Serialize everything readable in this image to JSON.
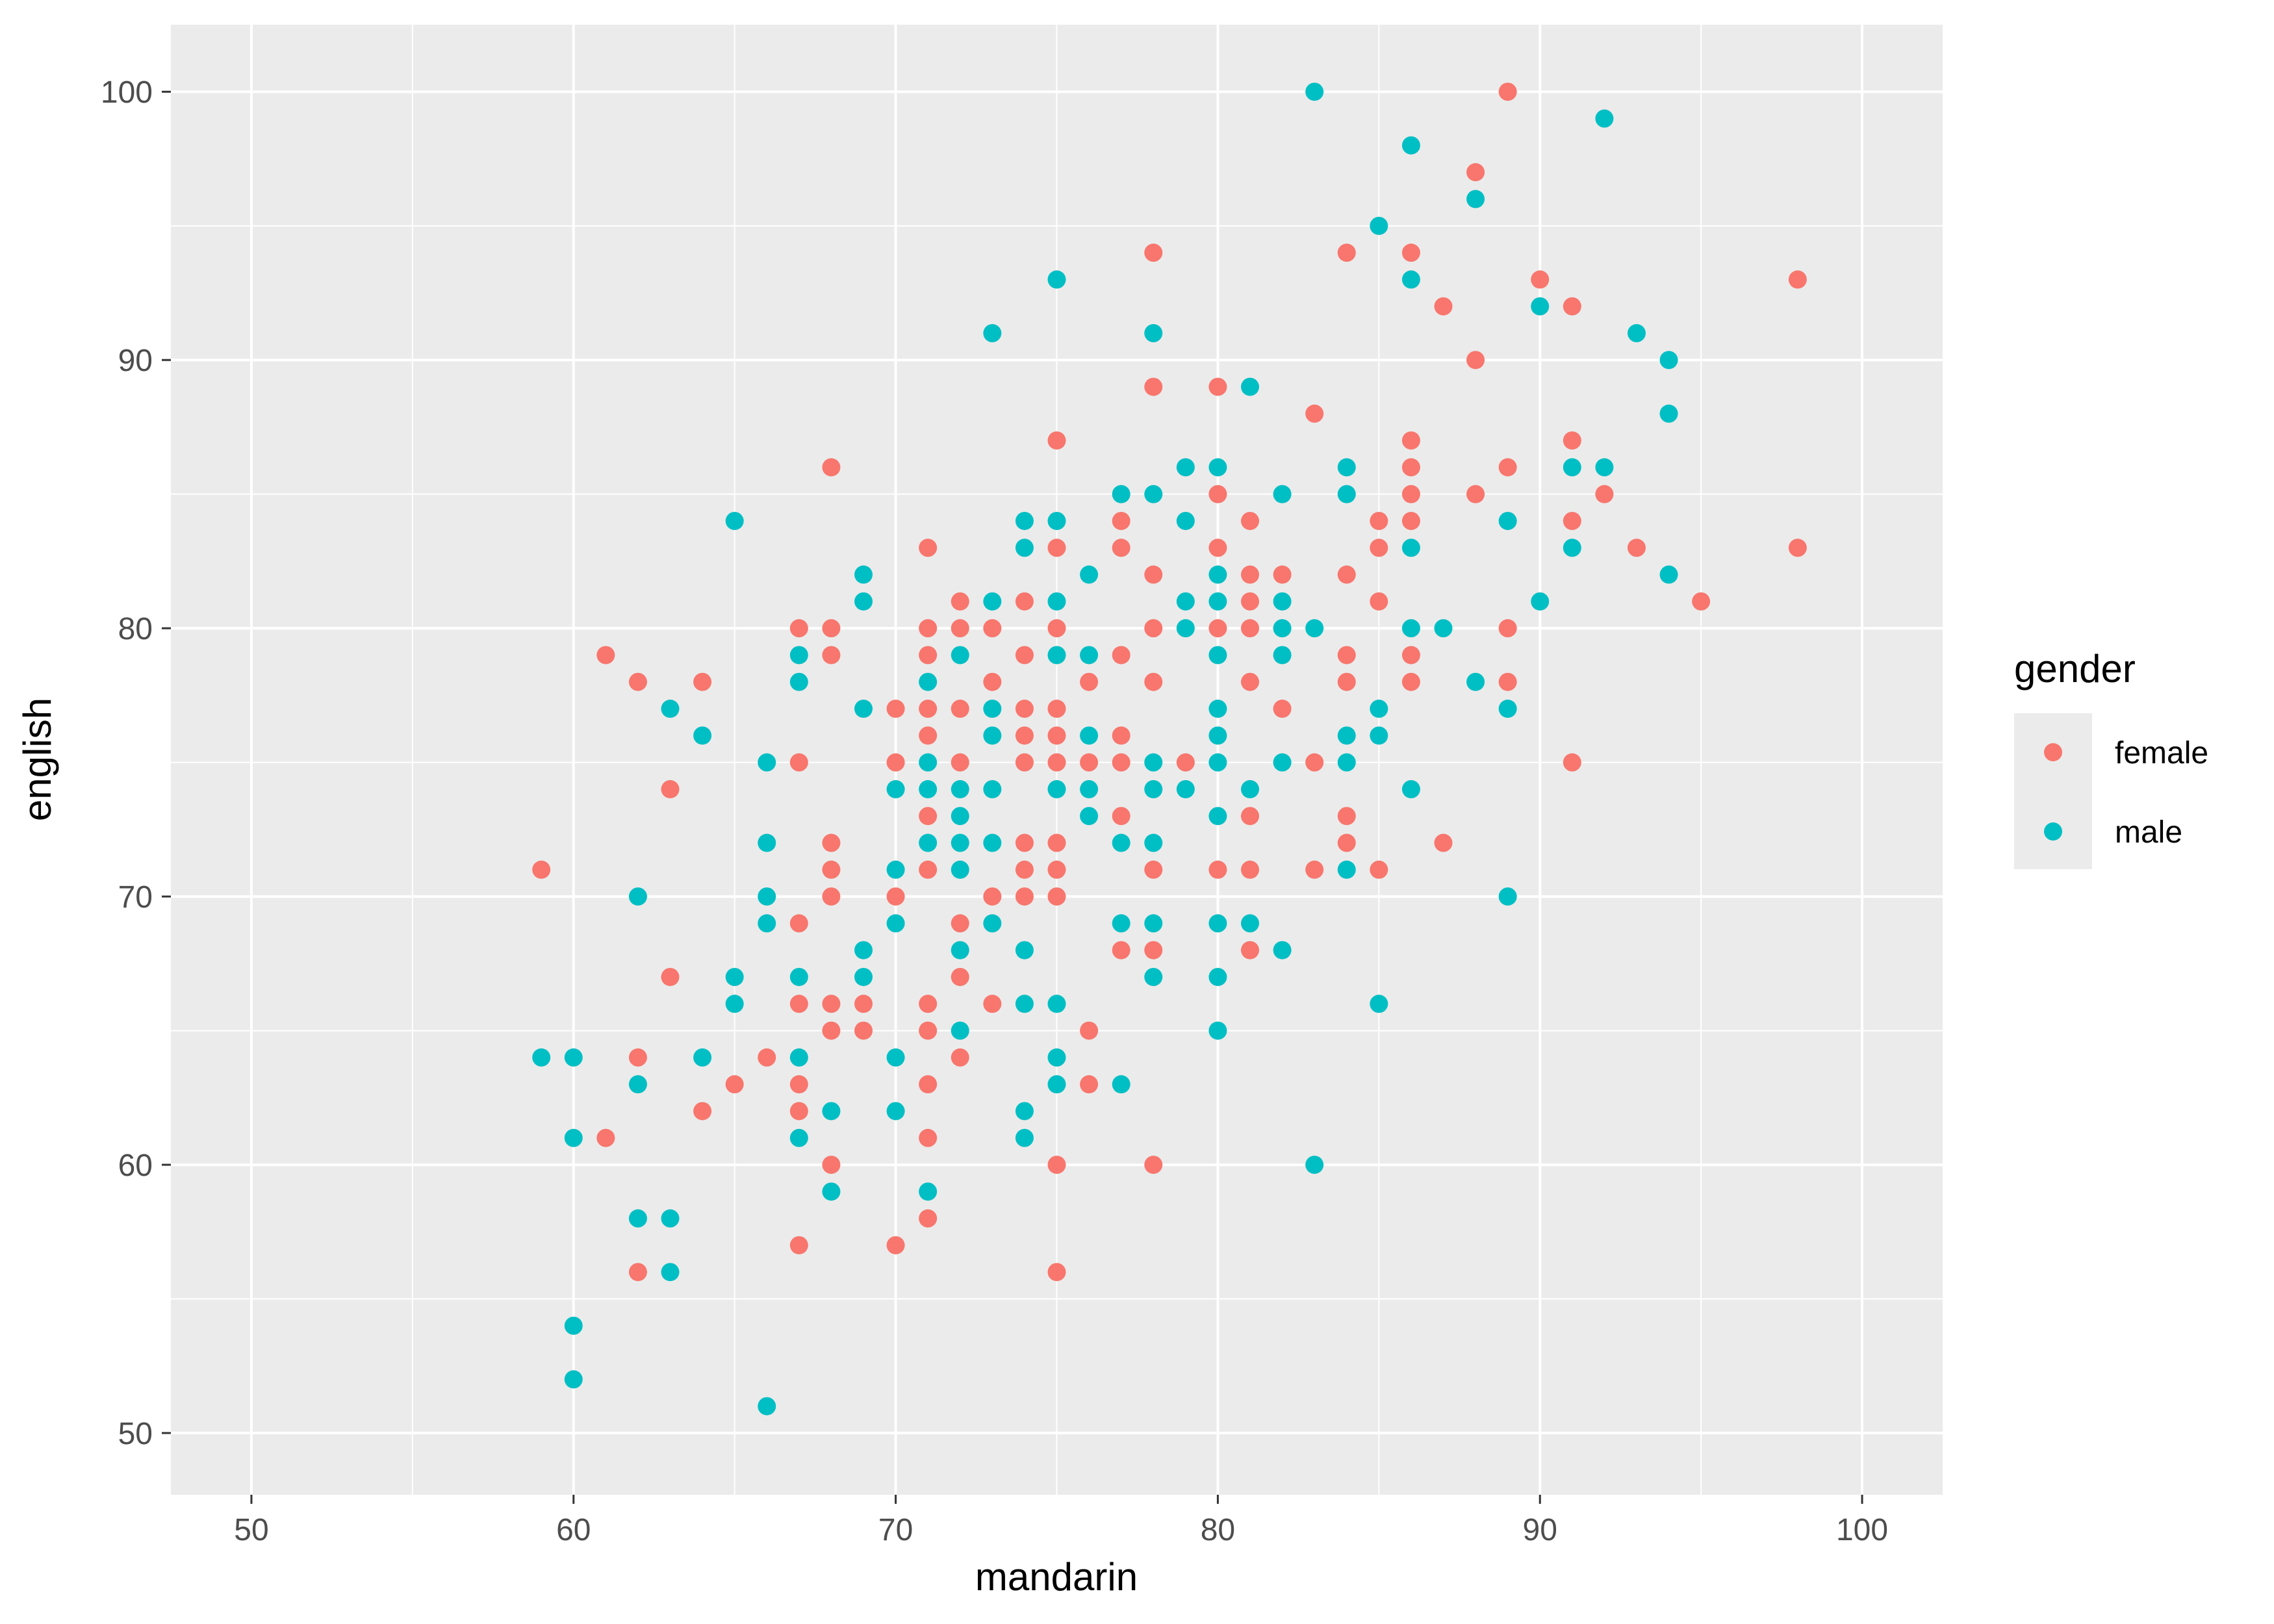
{
  "chart_data": {
    "type": "scatter",
    "xlabel": "mandarin",
    "ylabel": "english",
    "xlim": [
      47.5,
      102.5
    ],
    "ylim": [
      47.7,
      102.5
    ],
    "x_ticks": [
      50,
      60,
      70,
      80,
      90,
      100
    ],
    "y_ticks": [
      50,
      60,
      70,
      80,
      90,
      100
    ],
    "x_tick_labels": [
      "50",
      "60",
      "70",
      "80",
      "90",
      "100"
    ],
    "y_tick_labels": [
      "50",
      "60",
      "70",
      "80",
      "90",
      "100"
    ],
    "grid": true,
    "legend": {
      "title": "gender",
      "position": "right"
    },
    "series": [
      {
        "name": "female",
        "color": "#F8766D",
        "points": [
          [
            59,
            71
          ],
          [
            61,
            79
          ],
          [
            61,
            61
          ],
          [
            62,
            78
          ],
          [
            62,
            64
          ],
          [
            62,
            56
          ],
          [
            63,
            74
          ],
          [
            63,
            67
          ],
          [
            64,
            78
          ],
          [
            64,
            62
          ],
          [
            65,
            63
          ],
          [
            66,
            64
          ],
          [
            67,
            80
          ],
          [
            67,
            75
          ],
          [
            67,
            69
          ],
          [
            67,
            66
          ],
          [
            67,
            63
          ],
          [
            67,
            62
          ],
          [
            67,
            57
          ],
          [
            68,
            86
          ],
          [
            68,
            80
          ],
          [
            68,
            79
          ],
          [
            68,
            72
          ],
          [
            68,
            71
          ],
          [
            68,
            70
          ],
          [
            68,
            66
          ],
          [
            68,
            65
          ],
          [
            68,
            60
          ],
          [
            69,
            66
          ],
          [
            69,
            65
          ],
          [
            70,
            77
          ],
          [
            70,
            75
          ],
          [
            70,
            70
          ],
          [
            70,
            57
          ],
          [
            71,
            83
          ],
          [
            71,
            80
          ],
          [
            71,
            79
          ],
          [
            71,
            77
          ],
          [
            71,
            76
          ],
          [
            71,
            73
          ],
          [
            71,
            71
          ],
          [
            71,
            66
          ],
          [
            71,
            65
          ],
          [
            71,
            63
          ],
          [
            71,
            61
          ],
          [
            71,
            58
          ],
          [
            72,
            81
          ],
          [
            72,
            80
          ],
          [
            72,
            77
          ],
          [
            72,
            75
          ],
          [
            72,
            69
          ],
          [
            72,
            67
          ],
          [
            72,
            64
          ],
          [
            73,
            80
          ],
          [
            73,
            78
          ],
          [
            73,
            70
          ],
          [
            73,
            66
          ],
          [
            74,
            81
          ],
          [
            74,
            79
          ],
          [
            74,
            77
          ],
          [
            74,
            76
          ],
          [
            74,
            75
          ],
          [
            74,
            72
          ],
          [
            74,
            71
          ],
          [
            74,
            70
          ],
          [
            75,
            87
          ],
          [
            75,
            83
          ],
          [
            75,
            80
          ],
          [
            75,
            77
          ],
          [
            75,
            76
          ],
          [
            75,
            75
          ],
          [
            75,
            72
          ],
          [
            75,
            71
          ],
          [
            75,
            70
          ],
          [
            75,
            60
          ],
          [
            75,
            56
          ],
          [
            76,
            78
          ],
          [
            76,
            75
          ],
          [
            76,
            65
          ],
          [
            76,
            63
          ],
          [
            77,
            84
          ],
          [
            77,
            83
          ],
          [
            77,
            79
          ],
          [
            77,
            76
          ],
          [
            77,
            75
          ],
          [
            77,
            73
          ],
          [
            77,
            68
          ],
          [
            78,
            94
          ],
          [
            78,
            89
          ],
          [
            78,
            82
          ],
          [
            78,
            80
          ],
          [
            78,
            78
          ],
          [
            78,
            71
          ],
          [
            78,
            68
          ],
          [
            78,
            60
          ],
          [
            79,
            75
          ],
          [
            80,
            89
          ],
          [
            80,
            85
          ],
          [
            80,
            83
          ],
          [
            80,
            80
          ],
          [
            80,
            71
          ],
          [
            81,
            84
          ],
          [
            81,
            82
          ],
          [
            81,
            81
          ],
          [
            81,
            80
          ],
          [
            81,
            78
          ],
          [
            81,
            73
          ],
          [
            81,
            71
          ],
          [
            81,
            68
          ],
          [
            82,
            82
          ],
          [
            82,
            77
          ],
          [
            83,
            88
          ],
          [
            83,
            75
          ],
          [
            83,
            71
          ],
          [
            84,
            94
          ],
          [
            84,
            82
          ],
          [
            84,
            79
          ],
          [
            84,
            78
          ],
          [
            84,
            73
          ],
          [
            84,
            72
          ],
          [
            85,
            84
          ],
          [
            85,
            83
          ],
          [
            85,
            81
          ],
          [
            85,
            71
          ],
          [
            86,
            94
          ],
          [
            86,
            87
          ],
          [
            86,
            86
          ],
          [
            86,
            85
          ],
          [
            86,
            84
          ],
          [
            86,
            79
          ],
          [
            86,
            78
          ],
          [
            87,
            92
          ],
          [
            87,
            72
          ],
          [
            88,
            97
          ],
          [
            88,
            90
          ],
          [
            88,
            85
          ],
          [
            89,
            100
          ],
          [
            89,
            86
          ],
          [
            89,
            80
          ],
          [
            89,
            78
          ],
          [
            90,
            93
          ],
          [
            91,
            92
          ],
          [
            91,
            87
          ],
          [
            91,
            84
          ],
          [
            91,
            75
          ],
          [
            92,
            85
          ],
          [
            93,
            83
          ],
          [
            95,
            81
          ],
          [
            98,
            93
          ],
          [
            98,
            83
          ]
        ]
      },
      {
        "name": "male",
        "color": "#00BFC4",
        "points": [
          [
            59,
            64
          ],
          [
            60,
            64
          ],
          [
            60,
            61
          ],
          [
            60,
            54
          ],
          [
            60,
            52
          ],
          [
            62,
            70
          ],
          [
            62,
            63
          ],
          [
            62,
            58
          ],
          [
            63,
            77
          ],
          [
            63,
            58
          ],
          [
            63,
            56
          ],
          [
            64,
            76
          ],
          [
            64,
            64
          ],
          [
            65,
            84
          ],
          [
            65,
            67
          ],
          [
            65,
            66
          ],
          [
            66,
            75
          ],
          [
            66,
            72
          ],
          [
            66,
            70
          ],
          [
            66,
            69
          ],
          [
            66,
            51
          ],
          [
            67,
            79
          ],
          [
            67,
            78
          ],
          [
            67,
            67
          ],
          [
            67,
            64
          ],
          [
            67,
            61
          ],
          [
            68,
            62
          ],
          [
            68,
            59
          ],
          [
            69,
            82
          ],
          [
            69,
            81
          ],
          [
            69,
            77
          ],
          [
            69,
            68
          ],
          [
            69,
            67
          ],
          [
            70,
            74
          ],
          [
            70,
            71
          ],
          [
            70,
            69
          ],
          [
            70,
            64
          ],
          [
            70,
            62
          ],
          [
            71,
            78
          ],
          [
            71,
            75
          ],
          [
            71,
            74
          ],
          [
            71,
            72
          ],
          [
            71,
            59
          ],
          [
            72,
            79
          ],
          [
            72,
            74
          ],
          [
            72,
            73
          ],
          [
            72,
            72
          ],
          [
            72,
            71
          ],
          [
            72,
            68
          ],
          [
            72,
            65
          ],
          [
            73,
            91
          ],
          [
            73,
            81
          ],
          [
            73,
            77
          ],
          [
            73,
            76
          ],
          [
            73,
            74
          ],
          [
            73,
            72
          ],
          [
            73,
            69
          ],
          [
            74,
            84
          ],
          [
            74,
            83
          ],
          [
            74,
            68
          ],
          [
            74,
            66
          ],
          [
            74,
            62
          ],
          [
            74,
            61
          ],
          [
            75,
            93
          ],
          [
            75,
            84
          ],
          [
            75,
            81
          ],
          [
            75,
            79
          ],
          [
            75,
            74
          ],
          [
            75,
            66
          ],
          [
            75,
            64
          ],
          [
            75,
            63
          ],
          [
            76,
            82
          ],
          [
            76,
            79
          ],
          [
            76,
            76
          ],
          [
            76,
            74
          ],
          [
            76,
            73
          ],
          [
            77,
            85
          ],
          [
            77,
            72
          ],
          [
            77,
            69
          ],
          [
            77,
            63
          ],
          [
            78,
            91
          ],
          [
            78,
            85
          ],
          [
            78,
            75
          ],
          [
            78,
            74
          ],
          [
            78,
            72
          ],
          [
            78,
            69
          ],
          [
            78,
            67
          ],
          [
            79,
            86
          ],
          [
            79,
            84
          ],
          [
            79,
            81
          ],
          [
            79,
            80
          ],
          [
            79,
            74
          ],
          [
            80,
            86
          ],
          [
            80,
            82
          ],
          [
            80,
            81
          ],
          [
            80,
            79
          ],
          [
            80,
            77
          ],
          [
            80,
            76
          ],
          [
            80,
            75
          ],
          [
            80,
            73
          ],
          [
            80,
            69
          ],
          [
            80,
            67
          ],
          [
            80,
            65
          ],
          [
            81,
            89
          ],
          [
            81,
            74
          ],
          [
            81,
            69
          ],
          [
            82,
            85
          ],
          [
            82,
            81
          ],
          [
            82,
            80
          ],
          [
            82,
            79
          ],
          [
            82,
            75
          ],
          [
            82,
            68
          ],
          [
            83,
            100
          ],
          [
            83,
            80
          ],
          [
            83,
            60
          ],
          [
            84,
            86
          ],
          [
            84,
            85
          ],
          [
            84,
            76
          ],
          [
            84,
            75
          ],
          [
            84,
            71
          ],
          [
            85,
            95
          ],
          [
            85,
            77
          ],
          [
            85,
            76
          ],
          [
            85,
            66
          ],
          [
            86,
            98
          ],
          [
            86,
            93
          ],
          [
            86,
            83
          ],
          [
            86,
            80
          ],
          [
            86,
            74
          ],
          [
            87,
            80
          ],
          [
            88,
            96
          ],
          [
            88,
            78
          ],
          [
            89,
            84
          ],
          [
            89,
            77
          ],
          [
            89,
            70
          ],
          [
            90,
            92
          ],
          [
            90,
            81
          ],
          [
            91,
            86
          ],
          [
            91,
            83
          ],
          [
            92,
            99
          ],
          [
            92,
            86
          ],
          [
            93,
            91
          ],
          [
            94,
            90
          ],
          [
            94,
            88
          ],
          [
            94,
            82
          ]
        ]
      }
    ]
  }
}
